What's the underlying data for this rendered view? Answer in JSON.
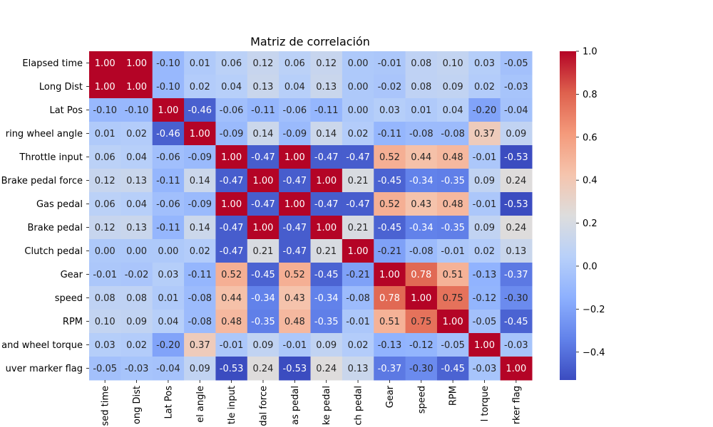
{
  "chart_data": {
    "type": "heatmap",
    "title": "Matriz de correlación",
    "row_labels": [
      "Elapsed time",
      "Long Dist",
      "Lat Pos",
      "ring wheel angle",
      "Throttle input",
      "Brake pedal force",
      "Gas pedal",
      "Brake pedal",
      "Clutch pedal",
      "Gear",
      "speed",
      "RPM",
      "and wheel torque",
      "uver marker flag"
    ],
    "col_labels": [
      "sed time",
      "ong Dist",
      "Lat Pos",
      "el angle",
      "tle input",
      "dal force",
      "as pedal",
      "ke pedal",
      "ch pedal",
      "Gear",
      "speed",
      "RPM",
      "l torque",
      "rker flag"
    ],
    "values": [
      [
        1.0,
        1.0,
        -0.1,
        0.01,
        0.06,
        0.12,
        0.06,
        0.12,
        0.0,
        -0.01,
        0.08,
        0.1,
        0.03,
        -0.05
      ],
      [
        1.0,
        1.0,
        -0.1,
        0.02,
        0.04,
        0.13,
        0.04,
        0.13,
        0.0,
        -0.02,
        0.08,
        0.09,
        0.02,
        -0.03
      ],
      [
        -0.1,
        -0.1,
        1.0,
        -0.46,
        -0.06,
        -0.11,
        -0.06,
        -0.11,
        -0.0,
        0.03,
        0.01,
        0.04,
        -0.2,
        -0.04
      ],
      [
        0.01,
        0.02,
        -0.46,
        1.0,
        -0.09,
        0.14,
        -0.09,
        0.14,
        0.02,
        -0.11,
        -0.08,
        -0.08,
        0.37,
        0.09
      ],
      [
        0.06,
        0.04,
        -0.06,
        -0.09,
        1.0,
        -0.47,
        1.0,
        -0.47,
        -0.47,
        0.52,
        0.44,
        0.48,
        -0.01,
        -0.53
      ],
      [
        0.12,
        0.13,
        -0.11,
        0.14,
        -0.47,
        1.0,
        -0.47,
        1.0,
        0.21,
        -0.45,
        -0.34,
        -0.35,
        0.09,
        0.24
      ],
      [
        0.06,
        0.04,
        -0.06,
        -0.09,
        1.0,
        -0.47,
        1.0,
        -0.47,
        -0.47,
        0.52,
        0.43,
        0.48,
        -0.01,
        -0.53
      ],
      [
        0.12,
        0.13,
        -0.11,
        0.14,
        -0.47,
        1.0,
        -0.47,
        1.0,
        0.21,
        -0.45,
        -0.34,
        -0.35,
        0.09,
        0.24
      ],
      [
        0.0,
        0.0,
        -0.0,
        0.02,
        -0.47,
        0.21,
        -0.47,
        0.21,
        1.0,
        -0.21,
        -0.08,
        -0.01,
        0.02,
        0.13
      ],
      [
        -0.01,
        -0.02,
        0.03,
        -0.11,
        0.52,
        -0.45,
        0.52,
        -0.45,
        -0.21,
        1.0,
        0.78,
        0.51,
        -0.13,
        -0.37
      ],
      [
        0.08,
        0.08,
        0.01,
        -0.08,
        0.44,
        -0.34,
        0.43,
        -0.34,
        -0.08,
        0.78,
        1.0,
        0.75,
        -0.12,
        -0.3
      ],
      [
        0.1,
        0.09,
        0.04,
        -0.08,
        0.48,
        -0.35,
        0.48,
        -0.35,
        -0.01,
        0.51,
        0.75,
        1.0,
        -0.05,
        -0.45
      ],
      [
        0.03,
        0.02,
        -0.2,
        0.37,
        -0.01,
        0.09,
        -0.01,
        0.09,
        0.02,
        -0.13,
        -0.12,
        -0.05,
        1.0,
        -0.03
      ],
      [
        -0.05,
        -0.03,
        -0.04,
        0.09,
        -0.53,
        0.24,
        -0.53,
        0.24,
        0.13,
        -0.37,
        -0.3,
        -0.45,
        -0.03,
        1.0
      ]
    ],
    "value_format": "2 decimals",
    "colormap": "coolwarm",
    "vmin": -0.53,
    "vmax": 1.0,
    "colorbar_ticks": [
      "−0.4",
      "−0.2",
      "0.0",
      "0.2",
      "0.4",
      "0.6",
      "0.8",
      "1.0"
    ],
    "colorbar_tick_values": [
      -0.4,
      -0.2,
      0.0,
      0.2,
      0.4,
      0.6,
      0.8,
      1.0
    ]
  }
}
